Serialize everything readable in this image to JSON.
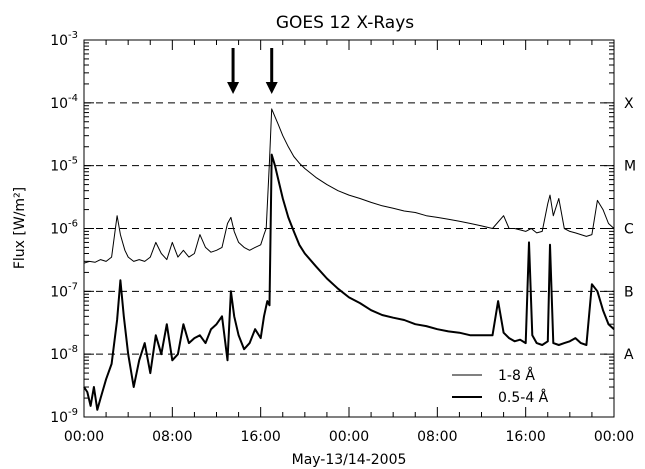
{
  "chart_data": {
    "type": "line",
    "title": "GOES 12 X-Rays",
    "xlabel": "May-13/14-2005",
    "ylabel": "Flux [W/m²]",
    "yscale": "log",
    "ylim": [
      1e-09,
      0.001
    ],
    "xlim_hours": [
      0,
      48
    ],
    "x_unit": "hours since 00:00 UT May 13 2005",
    "x_ticks": [
      "00:00",
      "08:00",
      "16:00",
      "00:00",
      "08:00",
      "16:00",
      "00:00"
    ],
    "y_ticks": [
      {
        "base": "10",
        "exp": "-9"
      },
      {
        "base": "10",
        "exp": "-8"
      },
      {
        "base": "10",
        "exp": "-7"
      },
      {
        "base": "10",
        "exp": "-6"
      },
      {
        "base": "10",
        "exp": "-5"
      },
      {
        "base": "10",
        "exp": "-4"
      },
      {
        "base": "10",
        "exp": "-3"
      }
    ],
    "flare_classes": [
      {
        "label": "X",
        "flux": 0.0001
      },
      {
        "label": "M",
        "flux": 1e-05
      },
      {
        "label": "C",
        "flux": 1e-06
      },
      {
        "label": "B",
        "flux": 1e-07
      },
      {
        "label": "A",
        "flux": 1e-08
      }
    ],
    "arrows_hours": [
      13.5,
      17.0
    ],
    "grid": false,
    "legend_position": "bottom-right",
    "series": [
      {
        "name": "1-8 Å",
        "color": "#000000",
        "width": 1,
        "x": [
          0,
          0.5,
          1,
          1.5,
          2,
          2.5,
          3,
          3.3,
          3.5,
          3.7,
          4,
          4.5,
          5,
          5.5,
          6,
          6.5,
          7,
          7.5,
          8,
          8.5,
          9,
          9.5,
          10,
          10.5,
          11,
          11.5,
          12,
          12.5,
          13,
          13.3,
          13.6,
          14,
          14.5,
          15,
          15.5,
          16,
          16.3,
          16.5,
          16.8,
          17,
          17.3,
          17.6,
          18,
          18.5,
          19,
          19.5,
          20,
          21,
          22,
          23,
          24,
          25,
          26,
          27,
          28,
          29,
          30,
          31,
          32,
          33,
          34,
          35,
          36,
          37,
          38,
          38.5,
          39,
          39.5,
          40,
          40.5,
          41,
          41.5,
          42,
          42.2,
          42.5,
          43,
          43.5,
          44,
          44.5,
          45,
          45.5,
          46,
          46.5,
          47,
          47.5,
          48
        ],
        "y": [
          2.8e-07,
          3e-07,
          2.9e-07,
          3.2e-07,
          3e-07,
          3.5e-07,
          1.6e-06,
          8e-07,
          6e-07,
          4.5e-07,
          3.5e-07,
          3e-07,
          3.2e-07,
          3e-07,
          3.5e-07,
          6e-07,
          4e-07,
          3.2e-07,
          6e-07,
          3.5e-07,
          4.5e-07,
          3.5e-07,
          4e-07,
          8e-07,
          5e-07,
          4.2e-07,
          4.5e-07,
          5e-07,
          1.2e-06,
          1.5e-06,
          9e-07,
          6e-07,
          5e-07,
          4.5e-07,
          5e-07,
          5.5e-07,
          8e-07,
          1e-06,
          1.2e-05,
          8e-05,
          6e-05,
          4.5e-05,
          3e-05,
          2e-05,
          1.4e-05,
          1.1e-05,
          9e-06,
          6.5e-06,
          5e-06,
          4e-06,
          3.4e-06,
          3e-06,
          2.6e-06,
          2.3e-06,
          2.1e-06,
          1.9e-06,
          1.8e-06,
          1.6e-06,
          1.5e-06,
          1.4e-06,
          1.3e-06,
          1.2e-06,
          1.1e-06,
          1e-06,
          1.6e-06,
          1e-06,
          1e-06,
          9.5e-07,
          9e-07,
          1e-06,
          8.5e-07,
          9e-07,
          2.5e-06,
          3.4e-06,
          1.6e-06,
          3e-06,
          1e-06,
          9e-07,
          8.5e-07,
          8e-07,
          7.5e-07,
          8e-07,
          2.8e-06,
          2e-06,
          1.2e-06,
          1e-06
        ]
      },
      {
        "name": "0.5-4 Å",
        "color": "#000000",
        "width": 2,
        "x": [
          0,
          0.3,
          0.6,
          0.9,
          1.2,
          1.5,
          2,
          2.5,
          3,
          3.3,
          3.6,
          4,
          4.5,
          5,
          5.5,
          6,
          6.5,
          7,
          7.5,
          8,
          8.5,
          9,
          9.5,
          10,
          10.5,
          11,
          11.5,
          12,
          12.5,
          13,
          13.3,
          13.6,
          14,
          14.5,
          15,
          15.5,
          16,
          16.3,
          16.6,
          16.8,
          17,
          17.3,
          17.6,
          18,
          18.5,
          19,
          19.5,
          20,
          21,
          22,
          23,
          24,
          25,
          26,
          27,
          28,
          29,
          30,
          31,
          32,
          33,
          34,
          35,
          36,
          37,
          37.5,
          38,
          38.5,
          39,
          39.5,
          40,
          40.3,
          40.6,
          41,
          41.5,
          42,
          42.2,
          42.5,
          43,
          43.5,
          44,
          44.5,
          45,
          45.5,
          46,
          46.5,
          47,
          47.5,
          48
        ],
        "y": [
          3e-09,
          2.5e-09,
          1.5e-09,
          3e-09,
          1.3e-09,
          2e-09,
          4e-09,
          7e-09,
          3.5e-08,
          1.5e-07,
          4e-08,
          1e-08,
          3e-09,
          8e-09,
          1.5e-08,
          5e-09,
          2e-08,
          1e-08,
          3e-08,
          8e-09,
          1e-08,
          3e-08,
          1.5e-08,
          1.8e-08,
          2e-08,
          1.5e-08,
          2.5e-08,
          3e-08,
          4e-08,
          8e-09,
          1e-07,
          4e-08,
          2e-08,
          1.2e-08,
          1.5e-08,
          2.5e-08,
          1.8e-08,
          4e-08,
          7e-08,
          6e-08,
          1.5e-05,
          1e-05,
          6e-06,
          3e-06,
          1.5e-06,
          9e-07,
          5.5e-07,
          4e-07,
          2.5e-07,
          1.6e-07,
          1.1e-07,
          8e-08,
          6.5e-08,
          5e-08,
          4.2e-08,
          3.8e-08,
          3.5e-08,
          3e-08,
          2.8e-08,
          2.5e-08,
          2.3e-08,
          2.2e-08,
          2e-08,
          2e-08,
          2e-08,
          7e-08,
          2.2e-08,
          1.8e-08,
          1.6e-08,
          1.7e-08,
          1.5e-08,
          6e-07,
          2e-08,
          1.5e-08,
          1.4e-08,
          1.6e-08,
          5.5e-07,
          1.5e-08,
          1.4e-08,
          1.5e-08,
          1.6e-08,
          1.8e-08,
          1.5e-08,
          1.4e-08,
          1.3e-07,
          1e-07,
          5e-08,
          3e-08,
          2.5e-08
        ]
      }
    ]
  }
}
